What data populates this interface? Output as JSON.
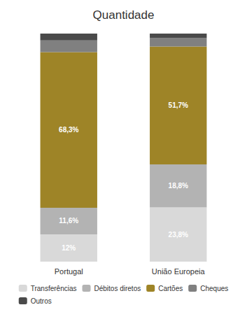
{
  "chart_data": {
    "type": "bar",
    "title": "Quantidade",
    "categories": [
      "Portugal",
      "União Europeia"
    ],
    "stacked": true,
    "series": [
      {
        "name": "Transferências",
        "color": "#d9d9d9",
        "values": [
          12.0,
          23.8
        ],
        "value_labels": [
          "12%",
          "23,8%"
        ]
      },
      {
        "name": "Débitos diretos",
        "color": "#b3b3b3",
        "values": [
          11.6,
          18.8
        ],
        "value_labels": [
          "11,6%",
          "18,8%"
        ]
      },
      {
        "name": "Cartões",
        "color": "#9e8427",
        "values": [
          68.3,
          51.7
        ],
        "value_labels": [
          "68,3%",
          "51,7%"
        ]
      },
      {
        "name": "Cheques",
        "color": "#808080",
        "values": [
          5.1,
          3.7
        ]
      },
      {
        "name": "Outros",
        "color": "#4a4a4a",
        "values": [
          3.0,
          2.0
        ]
      }
    ],
    "ylim": [
      0,
      100
    ],
    "tick_labels": "x",
    "grid": false,
    "legend": "bottom"
  }
}
